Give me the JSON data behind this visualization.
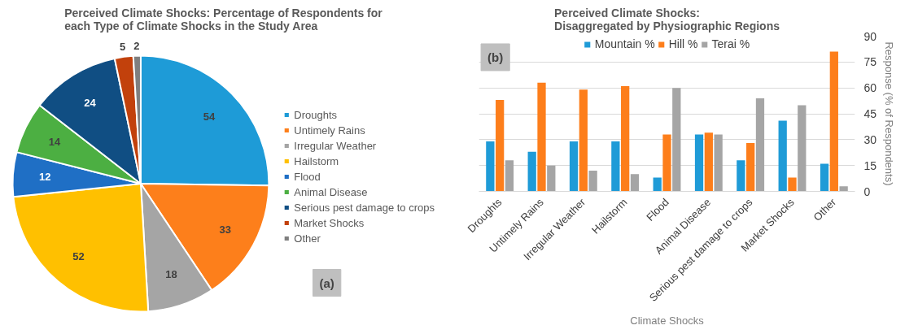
{
  "chart_data": [
    {
      "type": "pie",
      "title": "Perceived Climate Shocks: Percentage of Respondents for\neach Type of Climate Shocks in the Study Area",
      "categories": [
        "Droughts",
        "Untimely Rains",
        "Irregular Weather",
        "Hailstorm",
        "Flood",
        "Animal Disease",
        "Serious pest damage to crops",
        "Market Shocks",
        "Other"
      ],
      "values": [
        54,
        33,
        18,
        52,
        12,
        14,
        24,
        5,
        2
      ],
      "colors": [
        "#1e9bd7",
        "#fd7f1b",
        "#a5a5a5",
        "#ffc000",
        "#1f6fc5",
        "#4caf42",
        "#104e83",
        "#c2410c",
        "#7f7f7f"
      ],
      "data_labels": true,
      "legend": "right",
      "annotations": [
        "(a)"
      ]
    },
    {
      "type": "bar",
      "title": "Perceived Climate Shocks:\nDisaggregated by Physiographic Regions",
      "xlabel": "Climate Shocks",
      "ylabel": "Response (% of Respondents)",
      "categories": [
        "Droughts",
        "Untimely Rains",
        "Irregular Weather",
        "Hailstorm",
        "Flood",
        "Animal Disease",
        "Serious pest damage to crops",
        "Market Shocks",
        "Other"
      ],
      "series": [
        {
          "name": "Mountain %",
          "color": "#1f9bd7",
          "values": [
            29,
            23,
            29,
            29,
            8,
            33,
            18,
            41,
            16
          ]
        },
        {
          "name": "Hill %",
          "color": "#fd7e1b",
          "values": [
            53,
            63,
            59,
            61,
            33,
            34,
            28,
            8,
            81
          ]
        },
        {
          "name": "Terai %",
          "color": "#a5a5a5",
          "values": [
            18,
            15,
            12,
            10,
            60,
            33,
            54,
            50,
            3
          ]
        }
      ],
      "ylim": [
        0,
        90
      ],
      "yticks": [
        0,
        15,
        30,
        45,
        60,
        75,
        90
      ],
      "grid": "y",
      "legend": "top",
      "annotations": [
        "(b)"
      ]
    }
  ]
}
